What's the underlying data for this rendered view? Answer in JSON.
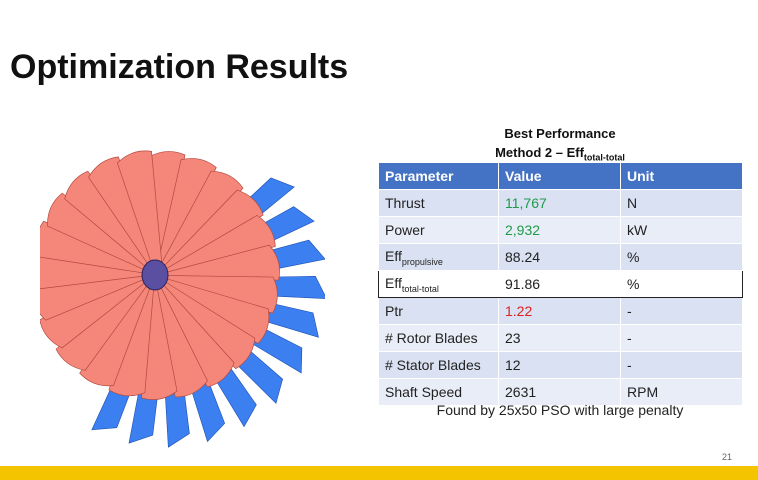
{
  "header": {
    "title": "Optimization Results"
  },
  "table": {
    "caption": "Best Performance",
    "subcaption": "Method 2 – Eff",
    "subcaption_sub": "total-total",
    "columns": [
      "Parameter",
      "Value",
      "Unit"
    ],
    "rows": [
      {
        "parameter": "Thrust",
        "value": "11,767",
        "unit": "N"
      },
      {
        "parameter": "Power",
        "value": "2,932",
        "unit": "kW"
      },
      {
        "parameter": "Eff",
        "parameter_sub": "propulsive",
        "value": "88.24",
        "unit": "%"
      },
      {
        "parameter": "Eff",
        "parameter_sub": "total-total",
        "value": "91.86",
        "unit": "%"
      },
      {
        "parameter": "Ptr",
        "value": "1.22",
        "unit": "-"
      },
      {
        "parameter": "# Rotor Blades",
        "value": "23",
        "unit": "-"
      },
      {
        "parameter": "# Stator Blades",
        "value": "12",
        "unit": "-"
      },
      {
        "parameter": "Shaft Speed",
        "value": "2631",
        "unit": "RPM"
      }
    ],
    "note": "Found by 25x50 PSO with large penalty"
  },
  "footer": {
    "page": "21"
  }
}
